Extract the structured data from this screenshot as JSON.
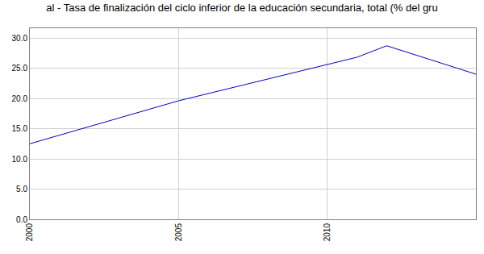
{
  "chart_data": {
    "type": "line",
    "title": "al - Tasa de finalización del ciclo inferior de la educación secundaria, total (% del gru",
    "x": [
      2000,
      2005,
      2011,
      2012,
      2015
    ],
    "values": [
      12.5,
      19.6,
      26.8,
      28.7,
      24.0
    ],
    "color": "#0000c0",
    "xlim": [
      2000,
      2015
    ],
    "xticks": [
      2000,
      2005,
      2010
    ],
    "ylim": [
      0,
      31.6
    ],
    "yticks": [
      {
        "value": 0,
        "label": "0.0"
      },
      {
        "value": 5,
        "label": "5.0"
      },
      {
        "value": 10,
        "label": "10.0"
      },
      {
        "value": 15,
        "label": "15.0"
      },
      {
        "value": 20,
        "label": "20.0"
      },
      {
        "value": 25,
        "label": "25.0"
      },
      {
        "value": 30,
        "label": "30.0"
      }
    ],
    "grid": true
  }
}
